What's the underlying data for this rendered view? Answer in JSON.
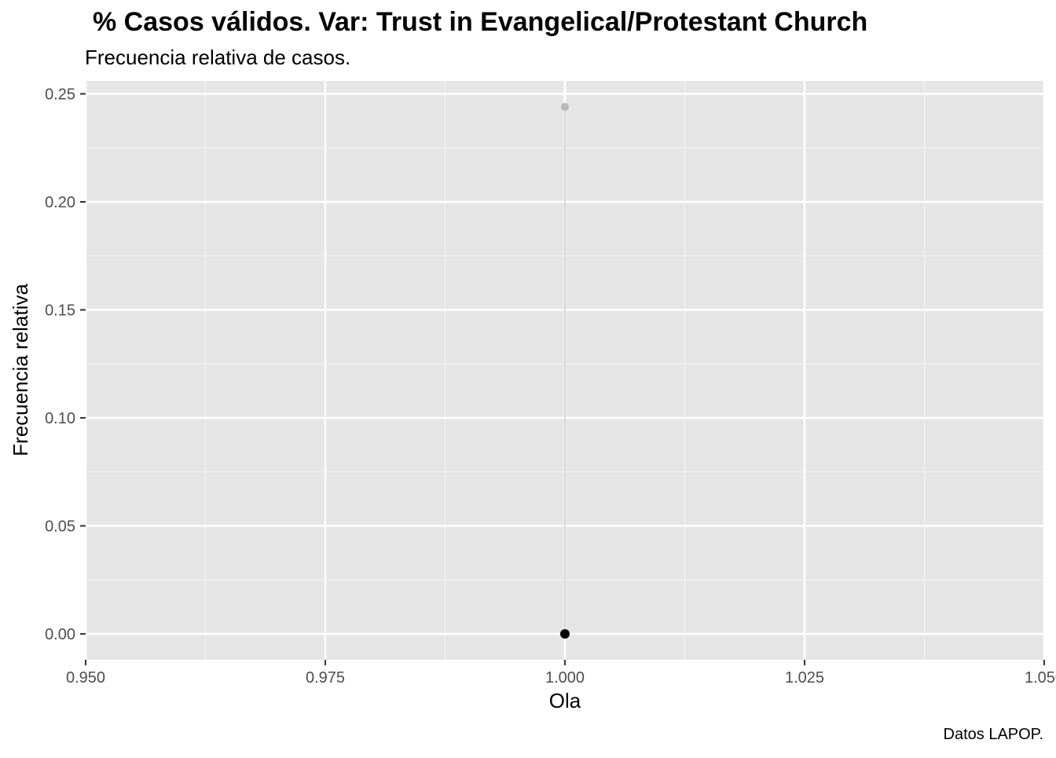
{
  "chart_data": {
    "type": "scatter",
    "title": "% Casos válidos. Var: Trust in Evangelical/Protestant Church",
    "subtitle": "Frecuencia relativa de casos.",
    "caption": "Datos LAPOP.",
    "xlabel": "Ola",
    "ylabel": "Frecuencia relativa",
    "xlim": [
      0.95,
      1.05
    ],
    "ylim": [
      -0.012,
      0.256
    ],
    "x_ticks": [
      {
        "value": 0.95,
        "label": "0.950"
      },
      {
        "value": 0.975,
        "label": "0.975"
      },
      {
        "value": 1.0,
        "label": "1.000"
      },
      {
        "value": 1.025,
        "label": "1.025"
      },
      {
        "value": 1.05,
        "label": "1.050"
      }
    ],
    "y_ticks": [
      {
        "value": 0.0,
        "label": "0.00"
      },
      {
        "value": 0.05,
        "label": "0.05"
      },
      {
        "value": 0.1,
        "label": "0.10"
      },
      {
        "value": 0.15,
        "label": "0.15"
      },
      {
        "value": 0.2,
        "label": "0.20"
      },
      {
        "value": 0.25,
        "label": "0.25"
      }
    ],
    "grid": true,
    "legend": "none",
    "series": [
      {
        "color": "#a6a6a6",
        "points": [
          {
            "x": 1.0,
            "y": 0.244
          }
        ],
        "vertical_line": true
      },
      {
        "color": "#000000",
        "points": [
          {
            "x": 1.0,
            "y": 0.0
          }
        ],
        "vertical_line": false
      }
    ],
    "colors": {
      "panel_background": "#e5e5e5",
      "grid_major": "#ffffff",
      "grid_minor": "#f2f2f2",
      "tick_text": "#4d4d4d",
      "text": "#000000"
    }
  }
}
